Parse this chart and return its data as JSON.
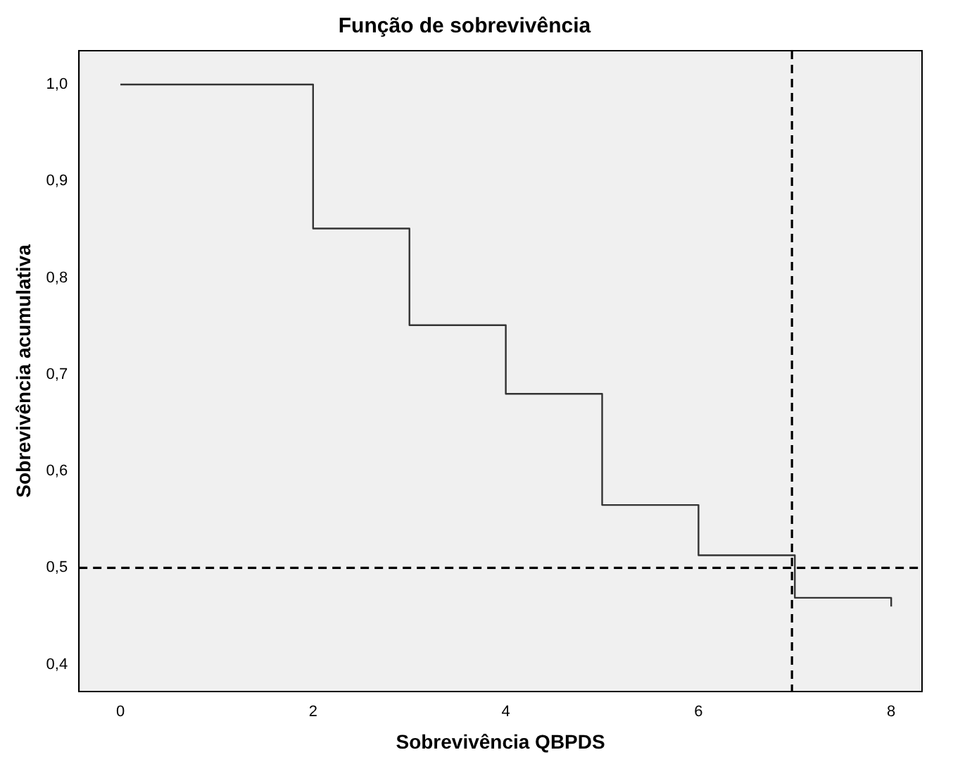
{
  "chart_data": {
    "type": "step",
    "title": "Função de sobrevivência",
    "xlabel": "Sobrevivência QBPDS",
    "ylabel": "Sobrevivência acumulativa",
    "series": [
      {
        "color": "#333333",
        "x": [
          0,
          2,
          3,
          4,
          5,
          6,
          7,
          8
        ],
        "values": [
          1.0,
          0.851,
          0.751,
          0.68,
          0.565,
          0.513,
          0.469,
          0.46
        ]
      }
    ],
    "xlim": [
      -0.43,
      8.32
    ],
    "xticks": [
      0,
      2,
      4,
      6,
      8
    ],
    "ylim": [
      0.372,
      1.035
    ],
    "yticks": [
      {
        "value": 0.4,
        "label": "0,4"
      },
      {
        "value": 0.5,
        "label": "0,5"
      },
      {
        "value": 0.6,
        "label": "0,6"
      },
      {
        "value": 0.7,
        "label": "0,7"
      },
      {
        "value": 0.8,
        "label": "0,8"
      },
      {
        "value": 0.9,
        "label": "0,9"
      },
      {
        "value": 1.0,
        "label": "1,0"
      }
    ],
    "ref_lines": [
      {
        "axis": "y",
        "value": 0.5,
        "color": "#000000",
        "line_style": "dashed"
      },
      {
        "axis": "x",
        "value": 6.97,
        "color": "#000000",
        "line_style": "dashed"
      }
    ],
    "grid": false,
    "legend": false,
    "marker": "none"
  }
}
